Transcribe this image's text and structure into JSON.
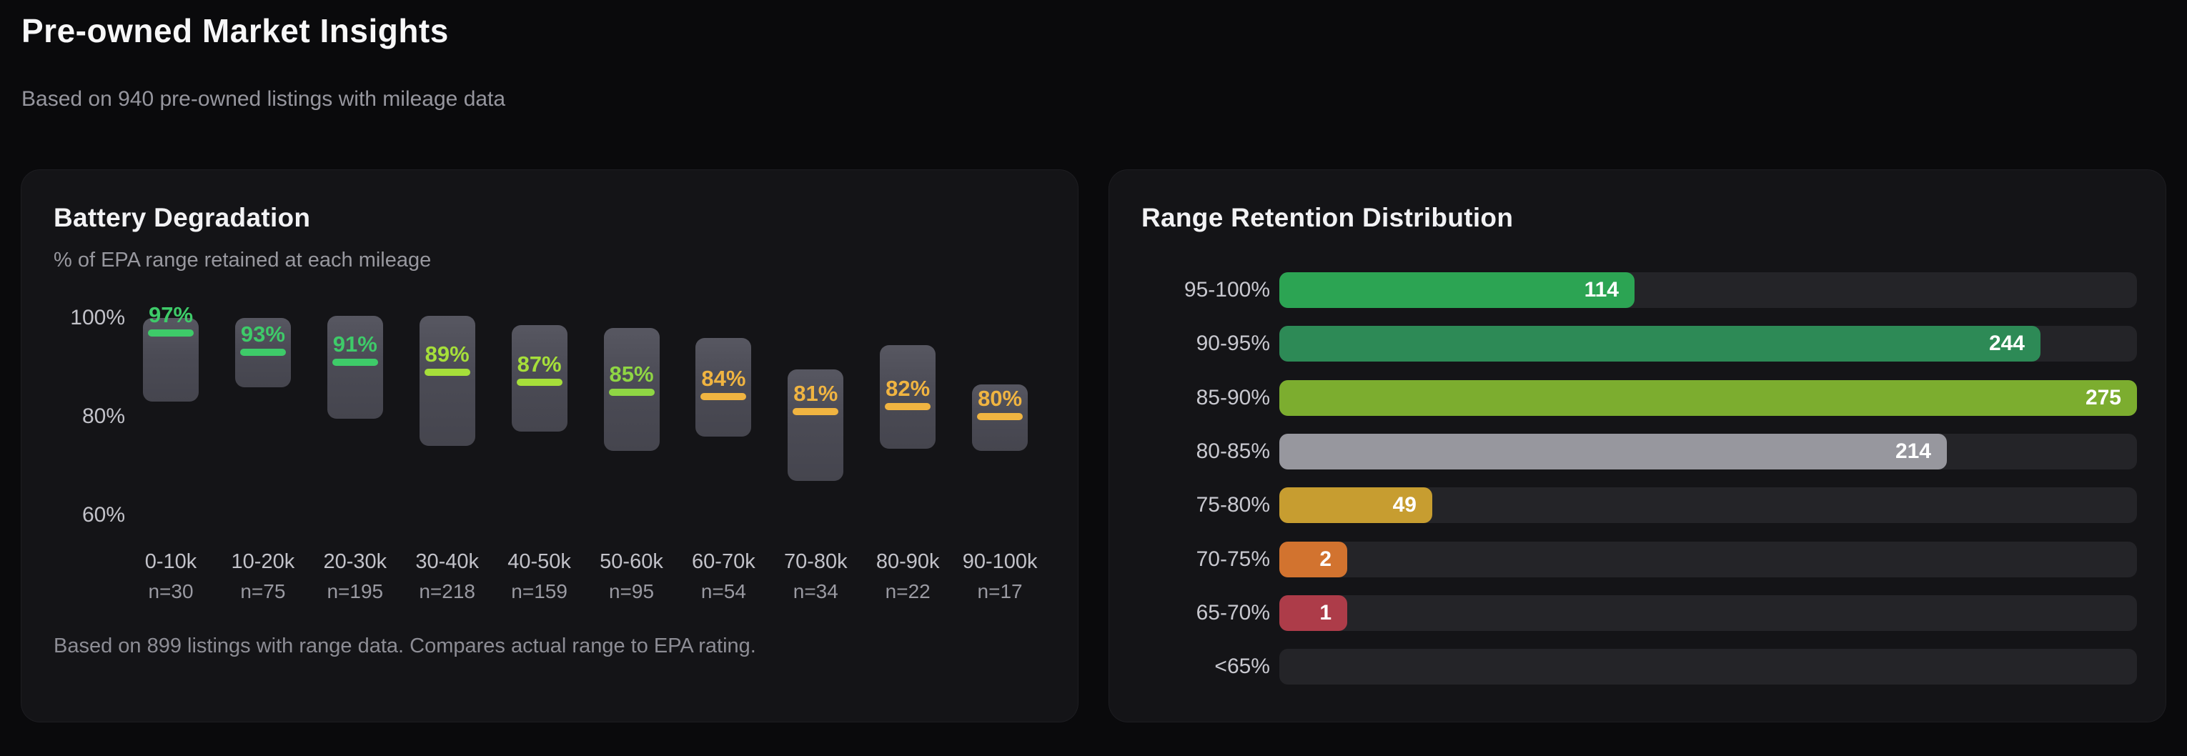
{
  "page": {
    "title": "Pre-owned Market Insights",
    "subtitle": "Based on 940 pre-owned listings with mileage data"
  },
  "battery_card": {
    "title": "Battery Degradation",
    "subtitle": "% of EPA range retained at each mileage",
    "footnote": "Based on 899 listings with range data. Compares actual range to EPA rating."
  },
  "retention_card": {
    "title": "Range Retention Distribution"
  },
  "chart_data": [
    {
      "type": "boxplot",
      "title": "Battery Degradation",
      "subtitle": "% of EPA range retained at each mileage",
      "categories": [
        "0-10k",
        "10-20k",
        "20-30k",
        "30-40k",
        "40-50k",
        "50-60k",
        "60-70k",
        "70-80k",
        "80-90k",
        "90-100k"
      ],
      "sample_labels": [
        "n=30",
        "n=75",
        "n=195",
        "n=218",
        "n=159",
        "n=95",
        "n=54",
        "n=34",
        "n=22",
        "n=17"
      ],
      "sample_sizes": [
        30,
        75,
        195,
        218,
        159,
        95,
        54,
        34,
        22,
        17
      ],
      "medians": [
        97,
        93,
        91,
        89,
        87,
        85,
        84,
        81,
        82,
        80
      ],
      "median_labels": [
        "97%",
        "93%",
        "91%",
        "89%",
        "87%",
        "85%",
        "84%",
        "81%",
        "82%",
        "80%"
      ],
      "box_high": [
        100,
        100,
        100.5,
        100.5,
        98.5,
        98,
        96,
        89.5,
        94.5,
        86.5
      ],
      "box_low": [
        83,
        86,
        79.5,
        74,
        77,
        73,
        76,
        67,
        73.5,
        73
      ],
      "median_colors": [
        "#3ecb69",
        "#3ecb69",
        "#3ecb69",
        "#a6df3a",
        "#a6df3a",
        "#8fd644",
        "#f0b441",
        "#f0b441",
        "#f0b441",
        "#f0b441"
      ],
      "y_tick_labels": [
        "100%",
        "80%",
        "60%"
      ],
      "y_tick_values": [
        100,
        80,
        60
      ],
      "ylim": [
        58,
        106
      ],
      "grid": false
    },
    {
      "type": "bar",
      "orientation": "horizontal",
      "title": "Range Retention Distribution",
      "categories": [
        "95-100%",
        "90-95%",
        "85-90%",
        "80-85%",
        "75-80%",
        "70-75%",
        "65-70%",
        "<65%"
      ],
      "values": [
        114,
        244,
        275,
        214,
        49,
        2,
        1,
        0
      ],
      "bar_colors": [
        "#2ca453",
        "#2d8a56",
        "#7cad2f",
        "#97979e",
        "#c79d30",
        "#d2732f",
        "#ad3c49",
        "#242428"
      ],
      "xlim": [
        0,
        275
      ],
      "value_labels_inside": true,
      "grid": false
    }
  ]
}
